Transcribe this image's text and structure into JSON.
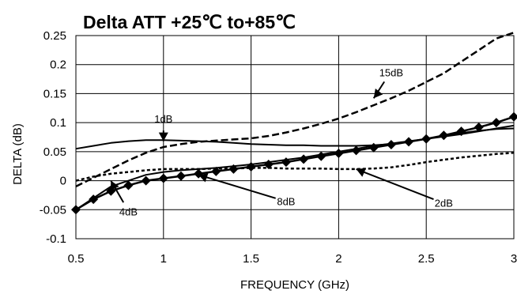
{
  "chart_data": {
    "type": "line",
    "title": "Delta ATT +25℃ to+85℃",
    "xlabel": "FREQUENCY (GHz)",
    "ylabel": "DELTA (dB)",
    "xlim": [
      0.5,
      3
    ],
    "ylim": [
      -0.1,
      0.25
    ],
    "x_ticks": [
      0.5,
      1,
      1.5,
      2,
      2.5,
      3
    ],
    "x_tick_labels": [
      "0.5",
      "1",
      "1.5",
      "2",
      "2.5",
      "3"
    ],
    "y_ticks": [
      -0.1,
      -0.05,
      0,
      0.05,
      0.1,
      0.15,
      0.2,
      0.25
    ],
    "y_tick_labels": [
      "-0.1",
      "-0.05",
      "0",
      "0.05",
      "0.1",
      "0.15",
      "0.2",
      "0.25"
    ],
    "grid": true,
    "series": [
      {
        "name": "1dB",
        "style": "solid",
        "x": [
          0.5,
          0.6,
          0.7,
          0.8,
          0.9,
          1.0,
          1.1,
          1.2,
          1.3,
          1.4,
          1.5,
          1.6,
          1.7,
          1.8,
          1.9,
          2.0,
          2.1,
          2.2,
          2.3,
          2.4,
          2.5,
          2.6,
          2.7,
          2.8,
          2.9,
          3.0
        ],
        "y": [
          0.055,
          0.06,
          0.065,
          0.068,
          0.07,
          0.07,
          0.069,
          0.068,
          0.067,
          0.065,
          0.063,
          0.062,
          0.061,
          0.061,
          0.06,
          0.06,
          0.06,
          0.061,
          0.063,
          0.067,
          0.072,
          0.077,
          0.082,
          0.086,
          0.089,
          0.09
        ]
      },
      {
        "name": "2dB",
        "style": "dotted",
        "x": [
          0.5,
          0.6,
          0.7,
          0.8,
          0.9,
          1.0,
          1.1,
          1.2,
          1.3,
          1.4,
          1.5,
          1.6,
          1.7,
          1.8,
          1.9,
          2.0,
          2.1,
          2.2,
          2.3,
          2.4,
          2.5,
          2.6,
          2.7,
          2.8,
          2.9,
          3.0
        ],
        "y": [
          0.0,
          0.007,
          0.012,
          0.015,
          0.018,
          0.02,
          0.02,
          0.02,
          0.021,
          0.021,
          0.022,
          0.022,
          0.021,
          0.021,
          0.021,
          0.02,
          0.02,
          0.021,
          0.023,
          0.027,
          0.032,
          0.036,
          0.04,
          0.043,
          0.046,
          0.048
        ]
      },
      {
        "name": "4dB",
        "style": "solid",
        "x": [
          0.5,
          0.6,
          0.7,
          0.8,
          0.9,
          1.0,
          1.1,
          1.2,
          1.3,
          1.4,
          1.5,
          1.6,
          1.7,
          1.8,
          1.9,
          2.0,
          2.1,
          2.2,
          2.3,
          2.4,
          2.5,
          2.6,
          2.7,
          2.8,
          2.9,
          3.0
        ],
        "y": [
          -0.05,
          -0.03,
          -0.01,
          0.0,
          0.01,
          0.015,
          0.018,
          0.02,
          0.022,
          0.025,
          0.028,
          0.032,
          0.036,
          0.04,
          0.045,
          0.05,
          0.055,
          0.06,
          0.064,
          0.068,
          0.072,
          0.076,
          0.08,
          0.085,
          0.09,
          0.095
        ]
      },
      {
        "name": "8dB",
        "style": "diamond-markers",
        "x": [
          0.5,
          0.6,
          0.7,
          0.8,
          0.9,
          1.0,
          1.1,
          1.2,
          1.3,
          1.4,
          1.5,
          1.6,
          1.7,
          1.8,
          1.9,
          2.0,
          2.1,
          2.2,
          2.3,
          2.4,
          2.5,
          2.6,
          2.7,
          2.8,
          2.9,
          3.0
        ],
        "y": [
          -0.05,
          -0.032,
          -0.018,
          -0.008,
          0.0,
          0.004,
          0.008,
          0.012,
          0.016,
          0.02,
          0.024,
          0.028,
          0.032,
          0.037,
          0.042,
          0.047,
          0.052,
          0.057,
          0.062,
          0.067,
          0.072,
          0.078,
          0.085,
          0.092,
          0.1,
          0.11
        ]
      },
      {
        "name": "15dB",
        "style": "dashed",
        "x": [
          0.5,
          0.6,
          0.7,
          0.8,
          0.9,
          1.0,
          1.1,
          1.2,
          1.3,
          1.4,
          1.5,
          1.6,
          1.7,
          1.8,
          1.9,
          2.0,
          2.1,
          2.2,
          2.3,
          2.4,
          2.5,
          2.6,
          2.7,
          2.8,
          2.9,
          3.0
        ],
        "y": [
          -0.01,
          0.005,
          0.02,
          0.035,
          0.048,
          0.058,
          0.063,
          0.067,
          0.069,
          0.071,
          0.073,
          0.077,
          0.083,
          0.09,
          0.098,
          0.107,
          0.118,
          0.13,
          0.142,
          0.155,
          0.17,
          0.185,
          0.205,
          0.225,
          0.245,
          0.255
        ]
      }
    ],
    "annotations": [
      {
        "text": "1dB",
        "x": 1.0,
        "y": 0.1
      },
      {
        "text": "15dB",
        "x": 2.3,
        "y": 0.18
      },
      {
        "text": "4dB",
        "x": 0.8,
        "y": -0.06
      },
      {
        "text": "8dB",
        "x": 1.7,
        "y": -0.042
      },
      {
        "text": "2dB",
        "x": 2.6,
        "y": -0.045
      }
    ]
  }
}
